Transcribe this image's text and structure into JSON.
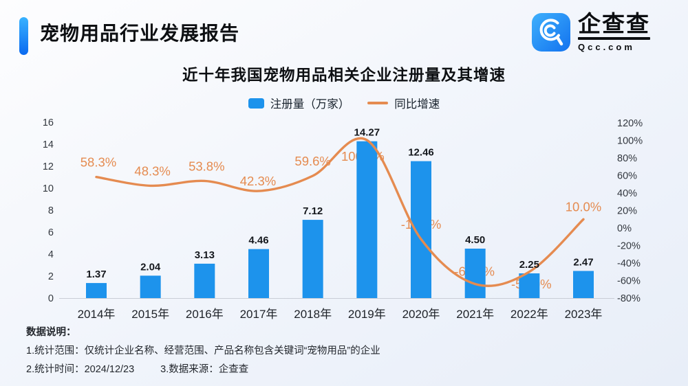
{
  "header": {
    "title": "宠物用品行业发展报告"
  },
  "logo": {
    "name": "企查查",
    "domain": "Qcc.com",
    "icon": "qcc-magnifier-icon",
    "brand_color": "#1e8bf7"
  },
  "legend": {
    "bar_label": "注册量（万家）",
    "line_label": "同比增速"
  },
  "footer": {
    "label": "数据说明：",
    "note_scope": "1.统计范围：仅统计企业名称、经营范围、产品名称包含关键词“宠物用品”的企业",
    "note_time": "2.统计时间：2024/12/23",
    "note_source": "3.数据来源：企查查"
  },
  "chart_data": {
    "type": "bar",
    "combo": "bar+line",
    "title": "近十年我国宠物用品相关企业注册量及其增速",
    "categories": [
      "2014年",
      "2015年",
      "2016年",
      "2017年",
      "2018年",
      "2019年",
      "2020年",
      "2021年",
      "2022年",
      "2023年"
    ],
    "series": [
      {
        "name": "注册量（万家）",
        "type": "bar",
        "color": "#1d93ec",
        "values": [
          1.37,
          2.04,
          3.13,
          4.46,
          7.12,
          14.27,
          12.46,
          4.5,
          2.25,
          2.47
        ],
        "value_labels": [
          "1.37",
          "2.04",
          "3.13",
          "4.46",
          "7.12",
          "14.27",
          "12.46",
          "4.50",
          "2.25",
          "2.47"
        ]
      },
      {
        "name": "同比增速",
        "type": "line",
        "color": "#e58b50",
        "values": [
          58.3,
          48.3,
          53.8,
          42.3,
          59.6,
          100.4,
          -12.7,
          -63.9,
          -50.0,
          10.0
        ],
        "value_labels": [
          "58.3%",
          "48.3%",
          "53.8%",
          "42.3%",
          "59.6%",
          "100.4%",
          "-12.7%",
          "-63.9%",
          "-50.0%",
          "10.0%"
        ]
      }
    ],
    "left_axis": {
      "min": 0,
      "max": 16,
      "step": 2
    },
    "right_axis": {
      "min": -80,
      "max": 120,
      "step": 20,
      "suffix": "%"
    },
    "legend_position": "top",
    "grid": false
  }
}
